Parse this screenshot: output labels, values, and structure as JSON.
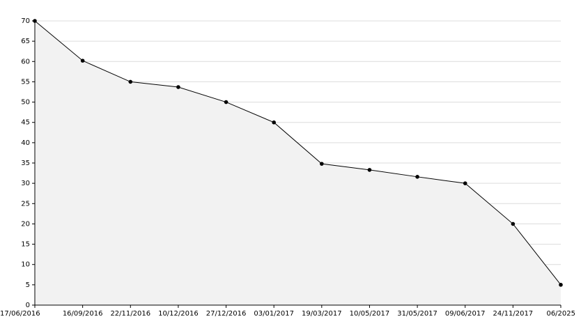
{
  "chart_data": {
    "type": "area",
    "categories": [
      "17/06/2016",
      "16/09/2016",
      "22/11/2016",
      "10/12/2016",
      "27/12/2016",
      "03/01/2017",
      "19/03/2017",
      "10/05/2017",
      "31/05/2017",
      "09/06/2017",
      "24/11/2017",
      "06/2025"
    ],
    "values": [
      70,
      60.2,
      55,
      53.7,
      50,
      45,
      34.8,
      33.3,
      31.6,
      30,
      20,
      5
    ],
    "color": "#000000",
    "fill": "#f2f2f2",
    "ylim": [
      0,
      70
    ],
    "yticks": [
      0,
      5,
      10,
      15,
      20,
      25,
      30,
      35,
      40,
      45,
      50,
      55,
      60,
      65,
      70
    ],
    "grid": true
  }
}
